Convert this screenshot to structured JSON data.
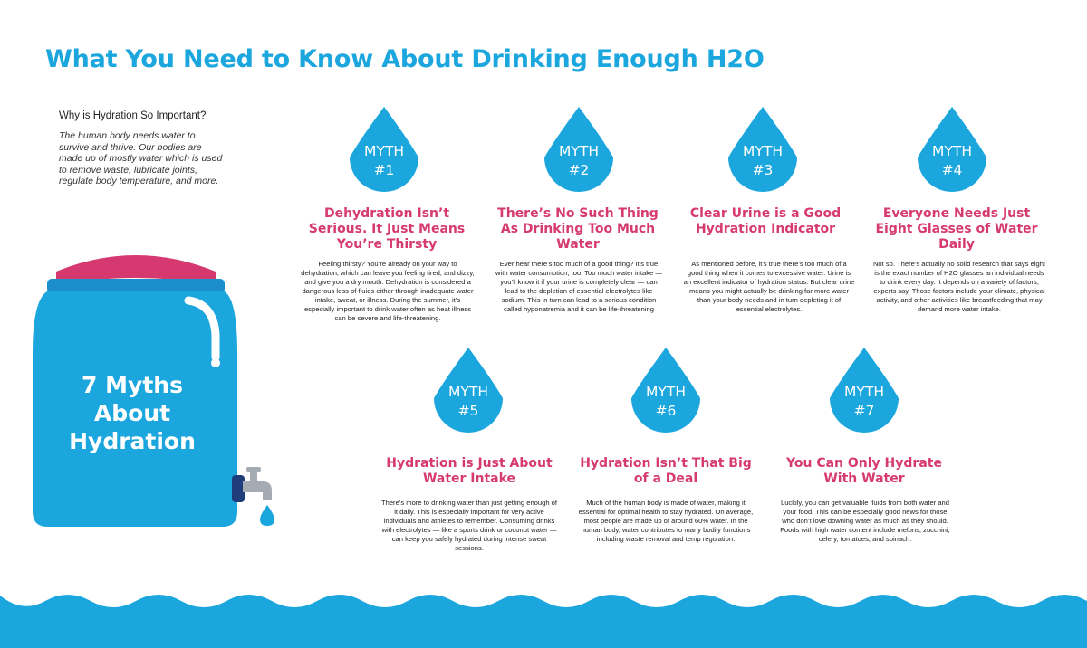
{
  "title": "What You Need to Know About Drinking Enough H2O",
  "intro": {
    "question": "Why is Hydration So Important?",
    "answer": "The human body needs water to survive and thrive. Our bodies are made up of mostly water which is used to remove waste, lubricate joints, regulate body temperature, and more."
  },
  "jug": {
    "title_lines": [
      "7 Myths",
      "About",
      "Hydration"
    ]
  },
  "colors": {
    "blue": "#1ba6de",
    "dark_blue": "#1580c0",
    "pink": "#d63a6f",
    "white": "#ffffff"
  },
  "myths": [
    {
      "label_word": "MYTH",
      "label_num": "#1",
      "heading": "Dehydration Isn’t Serious. It Just Means You’re Thirsty",
      "body": "Feeling thirsty? You’re already on your way to dehydration, which can leave you feeling tired, and dizzy, and give you a dry mouth. Dehydration is considered a dangerous loss of fluids either through inadequate water intake, sweat, or illness. During the summer, it’s especially important to drink water often as heat illness can be severe and life-threatening."
    },
    {
      "label_word": "MYTH",
      "label_num": "#2",
      "heading": "There’s No Such Thing As Drinking Too Much Water",
      "body": "Ever hear there’s too much of a good thing? It’s true with water consumption, too. Too much water intake — you’ll know it if your urine is completely clear — can lead to the depletion of essential electrolytes like sodium. This in turn can lead to a serious condition called hyponatremia and it can be life-threatening"
    },
    {
      "label_word": "MYTH",
      "label_num": "#3",
      "heading": "Clear Urine is a Good Hydration Indicator",
      "body": "As mentioned before, it’s true there’s too much of a good thing when it comes to excessive water. Urine is an excellent indicator of hydration status. But clear urine means you might actually be drinking far more water than your body needs and in turn depleting it of essential electrolytes."
    },
    {
      "label_word": "MYTH",
      "label_num": "#4",
      "heading": "Everyone Needs Just Eight Glasses of Water Daily",
      "body": "Not so. There’s actually no solid research that says eight is the exact number of H2O glasses an individual needs to drink every day. It depends on a variety of factors, experts say. Those factors include your climate, physical activity, and other activities like breastfeeding that may demand more water intake."
    },
    {
      "label_word": "MYTH",
      "label_num": "#5",
      "heading": "Hydration is Just About Water Intake",
      "body": "There’s more to drinking water than just getting enough of it daily. This is especially important for very active individuals and athletes to remember. Consuming drinks with electrolytes — like a sports drink or coconut water — can keep you safely hydrated during intense sweat sessions."
    },
    {
      "label_word": "MYTH",
      "label_num": "#6",
      "heading": "Hydration Isn’t That Big of a Deal",
      "body": "Much of the human body is made of water, making it essential for optimal health to stay hydrated. On average, most people are made up of around 60% water. In the human body, water contributes to many bodily functions including waste removal and temp regulation."
    },
    {
      "label_word": "MYTH",
      "label_num": "#7",
      "heading": "You Can Only Hydrate With Water",
      "body": "Luckily, you can get valuable fluids from both water and your food. This can be especially good news for those who don’t love downing water as much as they should. Foods with high water content include melons, zucchini, celery, tomatoes, and spinach."
    }
  ]
}
